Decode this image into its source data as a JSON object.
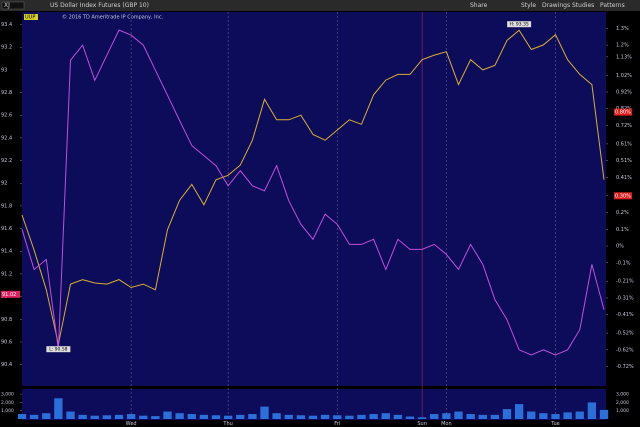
{
  "toolbar": {
    "symbol": "XJ",
    "description": "US Dollar Index Futures (GBP 10)",
    "buttons": [
      "Share",
      "Style",
      "Drawings",
      "Studies",
      "Patterns"
    ]
  },
  "chart_data": {
    "type": "line",
    "header": "© 2016 TD Ameritrade IP Company, Inc.",
    "symbol_tag": "UUP",
    "categories": [
      null,
      null,
      null,
      null,
      null,
      null,
      null,
      null,
      null,
      "Wed",
      null,
      null,
      null,
      null,
      null,
      null,
      null,
      "Thu",
      null,
      null,
      null,
      null,
      null,
      null,
      null,
      null,
      "Fri",
      null,
      null,
      null,
      null,
      null,
      null,
      "Sun",
      null,
      "Mon",
      null,
      null,
      null,
      null,
      null,
      null,
      null,
      null,
      "Tue",
      null,
      null,
      null,
      null
    ],
    "series": [
      {
        "color": "#d8b030",
        "axis": "y",
        "values": [
          91.72,
          91.41,
          91.06,
          90.58,
          91.11,
          91.15,
          91.12,
          91.11,
          91.15,
          91.08,
          91.11,
          91.06,
          91.59,
          91.85,
          91.99,
          91.81,
          92.03,
          92.07,
          92.16,
          92.38,
          92.74,
          92.56,
          92.56,
          92.6,
          92.43,
          92.38,
          92.47,
          92.56,
          92.52,
          92.78,
          92.91,
          92.96,
          92.96,
          93.09,
          93.13,
          93.16,
          92.87,
          93.09,
          93.0,
          93.04,
          93.26,
          93.35,
          93.18,
          93.22,
          93.31,
          93.09,
          92.96,
          92.87,
          92.03
        ]
      },
      {
        "color": "#c050d8",
        "axis": "y2",
        "values": [
          0.1,
          -0.14,
          -0.08,
          -0.62,
          1.11,
          1.2,
          0.99,
          1.14,
          1.29,
          1.26,
          1.2,
          1.05,
          0.9,
          0.75,
          0.6,
          0.54,
          0.48,
          0.36,
          0.45,
          0.36,
          0.33,
          0.48,
          0.27,
          0.13,
          0.04,
          0.19,
          0.13,
          0.01,
          0.01,
          0.04,
          -0.14,
          0.04,
          -0.02,
          -0.02,
          0.01,
          -0.05,
          -0.14,
          0.01,
          -0.11,
          -0.32,
          -0.44,
          -0.62,
          -0.65,
          -0.62,
          -0.65,
          -0.62,
          -0.5,
          -0.11,
          -0.38
        ]
      }
    ],
    "ylim": [
      90.22,
      93.44
    ],
    "yticks": [
      93.4,
      93.2,
      93,
      92.8,
      92.6,
      92.4,
      92.2,
      92,
      91.8,
      91.6,
      91.4,
      91.2,
      91,
      90.8,
      90.6,
      90.4
    ],
    "y2lim": [
      -0.83,
      1.35
    ],
    "y2ticks": [
      {
        "value": 1.3,
        "label": "1.3%"
      },
      {
        "value": 1.2,
        "label": "1.2%"
      },
      {
        "value": 1.13,
        "label": "1.13%"
      },
      {
        "value": 1.02,
        "label": "1.02%"
      },
      {
        "value": 0.92,
        "label": "0.92%"
      },
      {
        "value": 0.82,
        "label": "0.82%"
      },
      {
        "value": 0.72,
        "label": "0.72%"
      },
      {
        "value": 0.61,
        "label": "0.61%"
      },
      {
        "value": 0.51,
        "label": "0.51%"
      },
      {
        "value": 0.41,
        "label": "0.41%"
      },
      {
        "value": 0.3,
        "label": "0.3%"
      },
      {
        "value": 0.2,
        "label": "0.2%"
      },
      {
        "value": 0.1,
        "label": "0.1%"
      },
      {
        "value": 0,
        "label": "0%"
      },
      {
        "value": -0.1,
        "label": "-0.1%"
      },
      {
        "value": -0.21,
        "label": "-0.21%"
      },
      {
        "value": -0.31,
        "label": "-0.31%"
      },
      {
        "value": -0.41,
        "label": "-0.41%"
      },
      {
        "value": -0.52,
        "label": "-0.52%"
      },
      {
        "value": -0.62,
        "label": "-0.62%"
      },
      {
        "value": -0.72,
        "label": "-0.72%"
      }
    ],
    "badges_y2": [
      {
        "value": 0.8,
        "label": "0.80%"
      },
      {
        "value": 0.3,
        "label": "0.30%"
      }
    ],
    "badges_y": [
      {
        "value": 91.02,
        "label": "91.02"
      }
    ],
    "annotations": [
      {
        "text": "H: 93.35",
        "value": 93.35,
        "index": 41
      },
      {
        "text": "L: 90.58",
        "value": 90.58,
        "index": 3
      }
    ],
    "volume": {
      "color": "#2a70d8",
      "ylim": [
        0,
        3500
      ],
      "yticks": [
        {
          "value": 3000,
          "label": "3,000"
        },
        {
          "value": 2000,
          "label": "2,000"
        },
        {
          "value": 1000,
          "label": "1,000"
        }
      ],
      "values": [
        600,
        500,
        700,
        2500,
        900,
        500,
        400,
        450,
        500,
        600,
        400,
        350,
        900,
        700,
        600,
        500,
        450,
        400,
        500,
        600,
        1500,
        700,
        500,
        450,
        400,
        500,
        450,
        400,
        500,
        600,
        700,
        500,
        300,
        200,
        600,
        700,
        900,
        600,
        500,
        500,
        1200,
        1800,
        900,
        700,
        600,
        800,
        900,
        2000,
        1100
      ]
    }
  }
}
